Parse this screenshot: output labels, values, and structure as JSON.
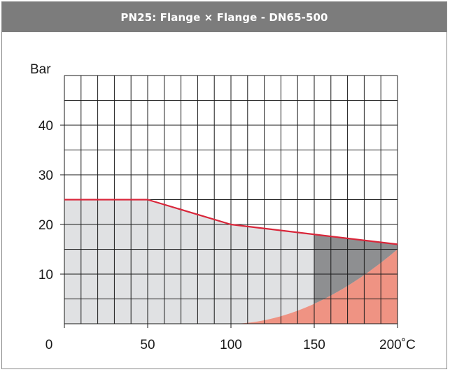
{
  "header": {
    "title": "PN25:  Flange × Flange - DN65-500"
  },
  "chart_data": {
    "type": "area",
    "title": "PN25:  Flange × Flange - DN65-500",
    "xlabel": "°C",
    "ylabel": "Bar",
    "xlim": [
      0,
      200
    ],
    "ylim": [
      0,
      50
    ],
    "x_ticks": [
      0,
      50,
      100,
      150,
      200
    ],
    "x_tick_labels": [
      "0",
      "50",
      "100",
      "150",
      "200˚C"
    ],
    "y_ticks": [
      10,
      20,
      30,
      40
    ],
    "y_tick_labels": [
      "10",
      "20",
      "30",
      "40"
    ],
    "grid": true,
    "grid_x_step": 10,
    "grid_y_step": 5,
    "series": [
      {
        "x": [
          0,
          50,
          100,
          200
        ],
        "y": [
          25,
          25,
          20,
          16
        ]
      }
    ],
    "regions": [
      {
        "color": "#e0e1e3"
      },
      {
        "color": "#8e8f91"
      },
      {
        "color": "#ef9383"
      }
    ],
    "colors": {
      "limit_line": "#d9263a",
      "grid": "#1a1a1a"
    }
  }
}
